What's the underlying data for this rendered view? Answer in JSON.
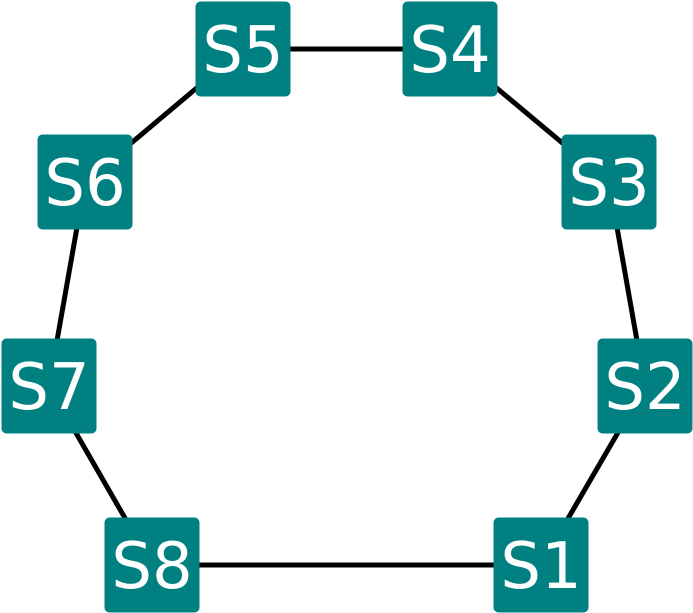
{
  "diagram": {
    "node_color": "#008080",
    "label_color": "#ffffff",
    "edge_color": "#000000",
    "nodes": [
      {
        "id": "S1",
        "label": "S1"
      },
      {
        "id": "S2",
        "label": "S2"
      },
      {
        "id": "S3",
        "label": "S3"
      },
      {
        "id": "S4",
        "label": "S4"
      },
      {
        "id": "S5",
        "label": "S5"
      },
      {
        "id": "S6",
        "label": "S6"
      },
      {
        "id": "S7",
        "label": "S7"
      },
      {
        "id": "S8",
        "label": "S8"
      }
    ],
    "edges": [
      [
        "S1",
        "S2"
      ],
      [
        "S2",
        "S3"
      ],
      [
        "S3",
        "S4"
      ],
      [
        "S4",
        "S5"
      ],
      [
        "S5",
        "S6"
      ],
      [
        "S6",
        "S7"
      ],
      [
        "S7",
        "S8"
      ],
      [
        "S8",
        "S1"
      ]
    ]
  }
}
